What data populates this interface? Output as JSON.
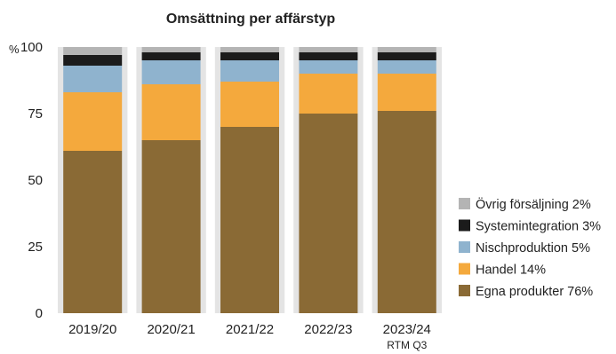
{
  "chart_data": {
    "type": "bar",
    "stacked": true,
    "title": "Omsättning per affärstyp",
    "y_unit": "%",
    "ylim": [
      0,
      100
    ],
    "yticks": [
      "0",
      "25",
      "50",
      "75",
      "100"
    ],
    "categories": [
      "2019/20",
      "2020/21",
      "2021/22",
      "2022/23",
      "2023/24"
    ],
    "category_sublabels": [
      "",
      "",
      "",
      "",
      "RTM Q3"
    ],
    "series": [
      {
        "name": "Egna produkter 76%",
        "color": "#8a6a35",
        "values": [
          61,
          65,
          70,
          75,
          76
        ]
      },
      {
        "name": "Handel 14%",
        "color": "#f4a93d",
        "values": [
          22,
          21,
          17,
          15,
          14
        ]
      },
      {
        "name": "Nischproduktion 5%",
        "color": "#8fb3ce",
        "values": [
          10,
          9,
          8,
          5,
          5
        ]
      },
      {
        "name": "Systemintegration 3%",
        "color": "#1b1b1b",
        "values": [
          4,
          3,
          3,
          3,
          3
        ]
      },
      {
        "name": "Övrig försäljning 2%",
        "color": "#b4b4b4",
        "values": [
          3,
          2,
          2,
          2,
          2
        ]
      }
    ],
    "legend_placement": "right",
    "plot_background": "#e4e4e4",
    "grid": false
  }
}
